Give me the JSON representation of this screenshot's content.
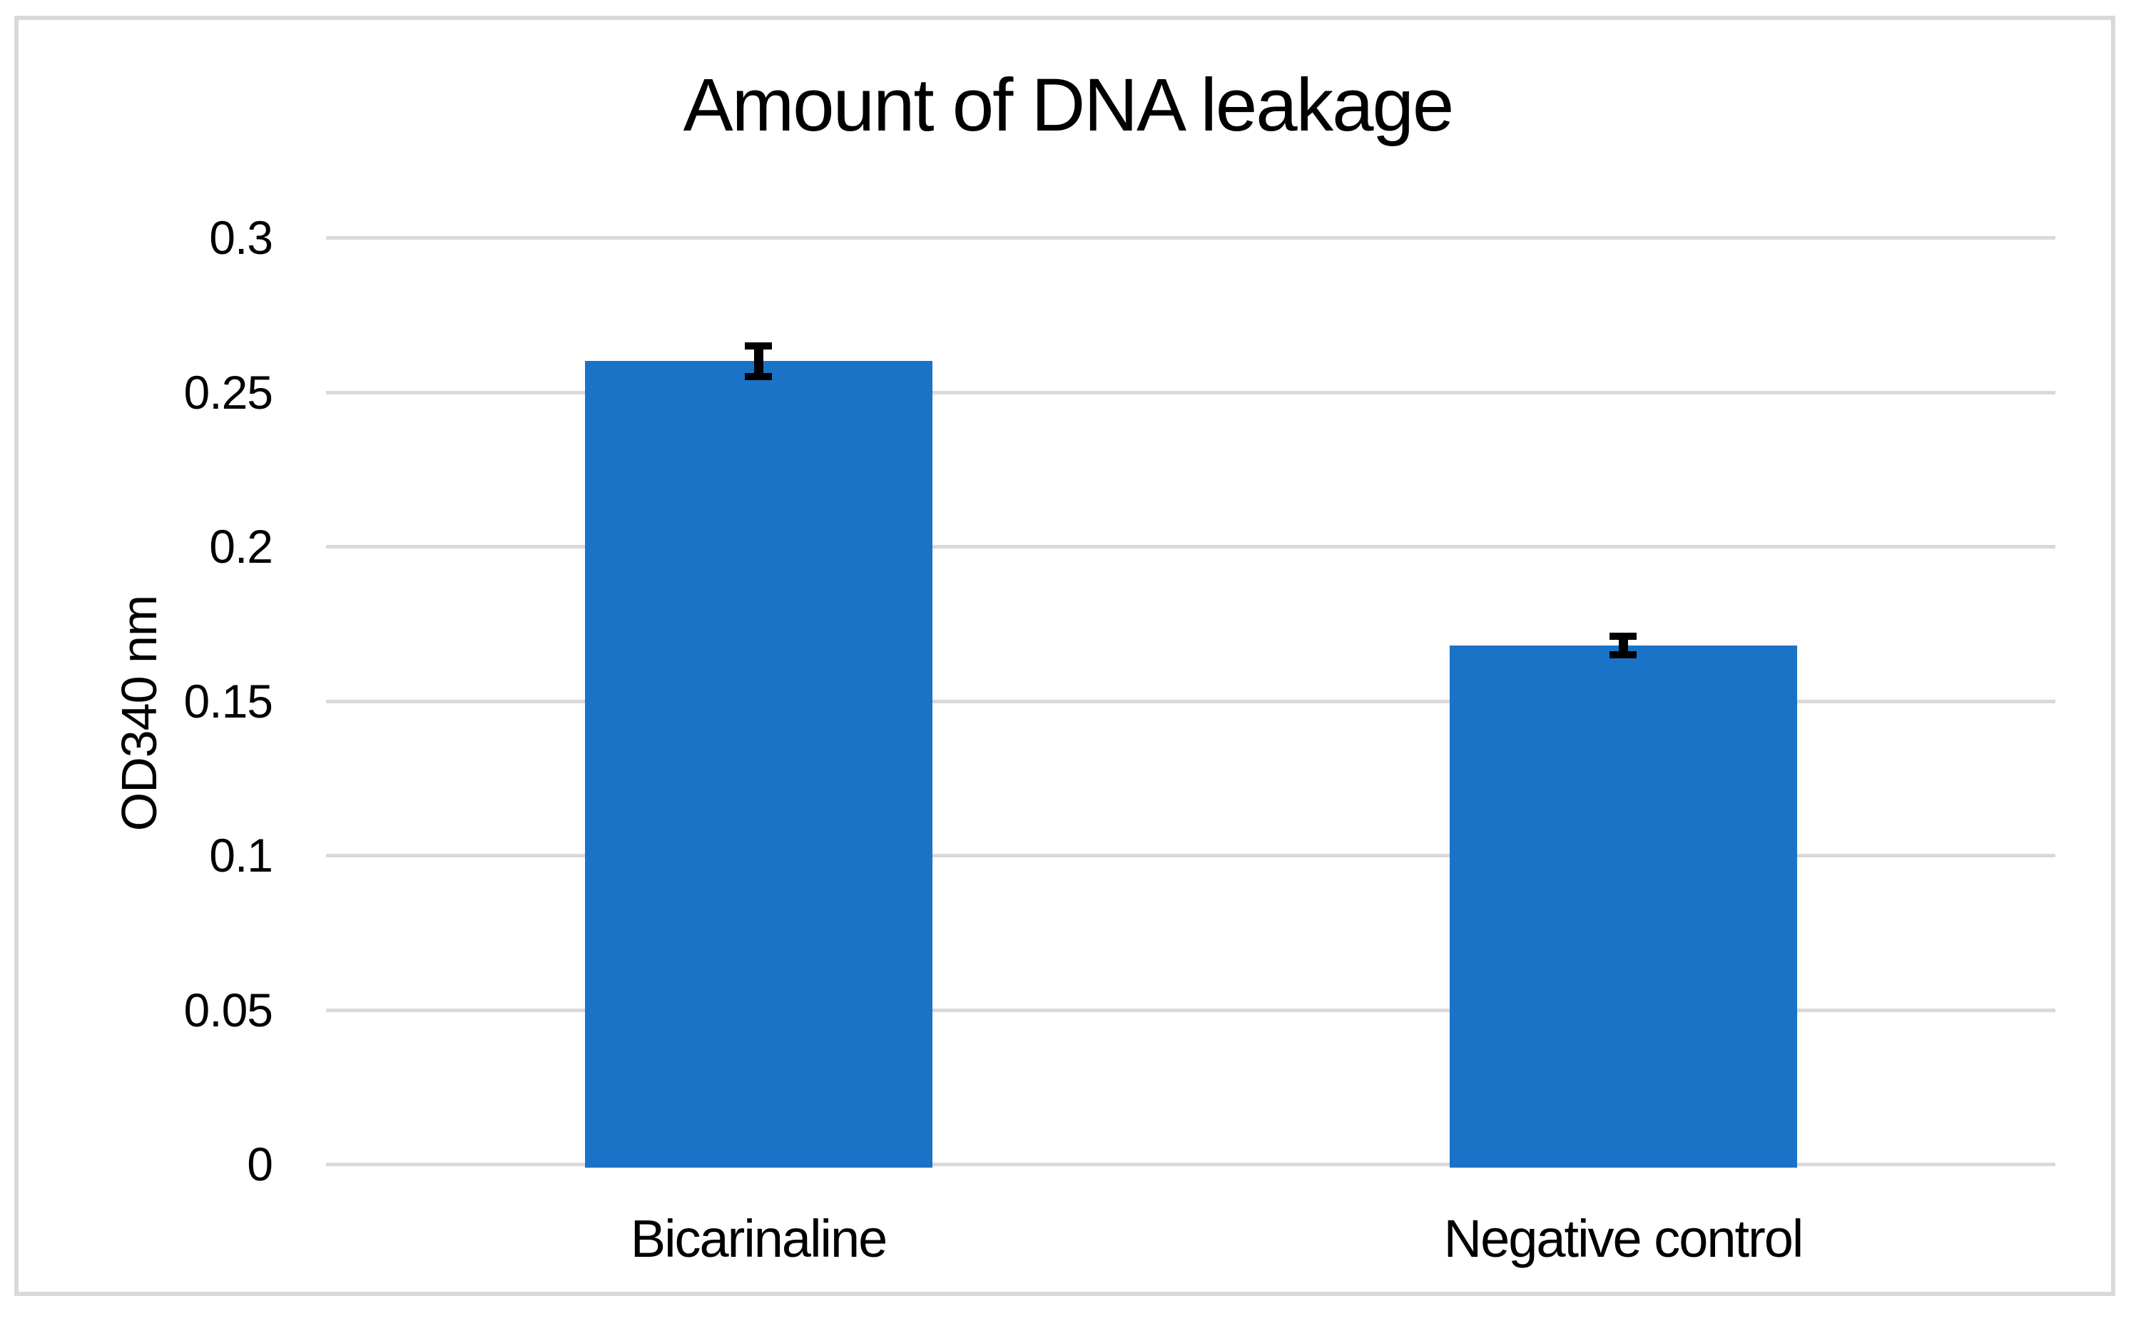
{
  "chart": {
    "title": "Amount of DNA leakage",
    "y_axis_label": "OD340 nm",
    "colors": {
      "bar": "#1B73C8",
      "gridline": "#D9D9D9",
      "frame_border": "#D9D9D9",
      "error_bar": "#000000",
      "text": "#000000",
      "background": "#FFFFFF"
    }
  },
  "chart_data": {
    "type": "bar",
    "title": "Amount of DNA leakage",
    "categories": [
      "Bicarinaline",
      "Negative control"
    ],
    "values": [
      0.26,
      0.168
    ],
    "error_bars": [
      0.005,
      0.003
    ],
    "xlabel": "",
    "ylabel": "OD340 nm",
    "ylim": [
      0,
      0.3
    ],
    "ytick_step": 0.05,
    "ytick_labels": [
      "0",
      "0.05",
      "0.1",
      "0.15",
      "0.2",
      "0.25",
      "0.3"
    ],
    "grid": true,
    "legend": false,
    "bar_color": "#1B73C8",
    "error_bar_color": "#000000"
  }
}
